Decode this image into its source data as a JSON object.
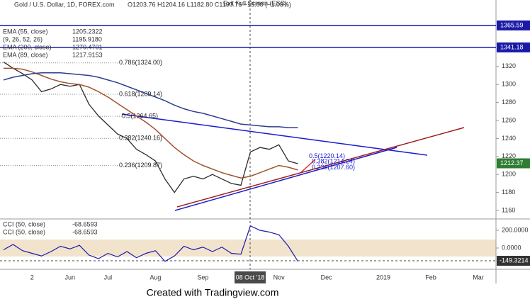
{
  "header": {
    "title": "Gold / U.S. Dollar, 1D, FOREX.com",
    "ohlc": "O1203.76 H1204.16 L1182.80 C1190.76 −13.00 (−1.08%)",
    "exit": "Exit Full Screen (ESC)",
    "footer": "Created with Tradingview.com"
  },
  "chart_data": {
    "type": "line",
    "categories": [
      null,
      null,
      null,
      "2",
      null,
      null,
      null,
      "Jun",
      null,
      null,
      null,
      "Jul",
      null,
      null,
      null,
      null,
      "Aug",
      null,
      null,
      null,
      null,
      "Sep",
      null,
      null,
      null,
      null,
      null,
      null,
      null,
      "Nov",
      null,
      null,
      null,
      null,
      "Dec",
      null,
      null,
      null,
      null,
      null,
      "2019",
      null,
      null,
      null,
      null,
      "Feb",
      null,
      null,
      null,
      null,
      "Mar",
      null
    ],
    "ylim": [
      1151.34,
      1393.86
    ],
    "yticks": [
      1160,
      1180,
      1200,
      1220,
      1240,
      1260,
      1280,
      1300,
      1320
    ],
    "series": [
      {
        "name": "Price",
        "color": "#2b2b2b",
        "values": [
          1325,
          1318,
          1312,
          1305,
          1292,
          1295,
          1300,
          1298,
          1300,
          1278,
          1265,
          1255,
          1245,
          1240,
          1228,
          1222,
          1215,
          1195,
          1180,
          1195,
          1198,
          1195,
          1200,
          1195,
          1190,
          1188,
          1225,
          1230,
          1228,
          1233,
          1215,
          1212,
          null,
          null,
          null,
          null,
          null,
          null,
          null,
          null,
          null,
          null,
          null,
          null,
          null,
          null,
          null,
          null,
          null,
          null,
          null,
          null
        ]
      },
      {
        "name": "EMA (55, close)",
        "color": "#a0522d",
        "values": [
          1318,
          1318,
          1317,
          1314,
          1310,
          1306,
          1303,
          1301,
          1300,
          1297,
          1292,
          1286,
          1279,
          1272,
          1265,
          1258,
          1250,
          1240,
          1230,
          1222,
          1215,
          1210,
          1206,
          1202,
          1199,
          1196,
          1198,
          1202,
          1206,
          1210,
          1208,
          1205,
          null,
          null,
          null,
          null,
          null,
          null,
          null,
          null,
          null,
          null,
          null,
          null,
          null,
          null,
          null,
          null,
          null,
          null,
          null,
          null
        ]
      },
      {
        "name": "EMA (200, close)",
        "color": "#2c3e8f",
        "values": [
          1305,
          1308,
          1310,
          1312,
          1313,
          1313,
          1313,
          1312,
          1311,
          1310,
          1308,
          1305,
          1302,
          1298,
          1294,
          1290,
          1286,
          1282,
          1277,
          1273,
          1270,
          1268,
          1265,
          1262,
          1259,
          1256,
          1255,
          1254,
          1253,
          1253,
          1252,
          1252,
          null,
          null,
          null,
          null,
          null,
          null,
          null,
          null,
          null,
          null,
          null,
          null,
          null,
          null,
          null,
          null,
          null,
          null,
          null,
          null
        ]
      }
    ],
    "legend": [
      {
        "name": "EMA (55, close)",
        "value": "1205.2322"
      },
      {
        "name": "(9, 26, 52, 26)",
        "value": "1195.9180"
      },
      {
        "name": "EMA (200, close)",
        "value": "1270.4701"
      },
      {
        "name": "EMA (89, close)",
        "value": "1217.9153"
      }
    ],
    "price_lines": [
      {
        "value": 1365.59,
        "color": "#1a1aa8"
      },
      {
        "value": 1341.18,
        "color": "#1a1aa8"
      }
    ],
    "last_price": {
      "value": 1212.37,
      "color": "#2e7d32"
    },
    "fib_levels": [
      {
        "label": "0.786(1324.00)",
        "value": 1324.0
      },
      {
        "label": "0.618(1289.14)",
        "value": 1289.14
      },
      {
        "label": "0.5(1264.65)",
        "value": 1264.65
      },
      {
        "label": "0.382(1240.16)",
        "value": 1240.16
      },
      {
        "label": "0.236(1209.87)",
        "value": 1209.87
      },
      {
        "label": "0.5(1220.14)",
        "value": 1220.14
      },
      {
        "label": "0.382(1214.24)",
        "value": 1214.24
      },
      {
        "label": "0.236(1207.60)",
        "value": 1207.6
      }
    ],
    "crosshair_label": "08 Oct '18",
    "cci": {
      "type": "line",
      "color": "#1a1ab0",
      "ylim": [
        -224,
        312
      ],
      "yticks": [
        {
          "value": 200,
          "label": "200.0000"
        },
        {
          "value": 0,
          "label": "0.0000"
        }
      ],
      "legend": [
        {
          "name": "CCI (50, close)",
          "value": "-68.6593"
        },
        {
          "name": "CCI (50, close)",
          "value": "-68.6593"
        }
      ],
      "values": [
        -20,
        40,
        -30,
        -60,
        -90,
        -40,
        20,
        -10,
        30,
        -80,
        -120,
        -60,
        -100,
        -40,
        -110,
        -60,
        -30,
        -150,
        -90,
        20,
        -20,
        10,
        -40,
        10,
        -60,
        -70,
        250,
        200,
        180,
        150,
        20,
        -149.3214,
        null,
        null,
        null,
        null,
        null,
        null,
        null,
        null,
        null,
        null,
        null,
        null,
        null,
        null,
        null,
        null,
        null,
        null,
        null,
        null
      ]
    }
  }
}
